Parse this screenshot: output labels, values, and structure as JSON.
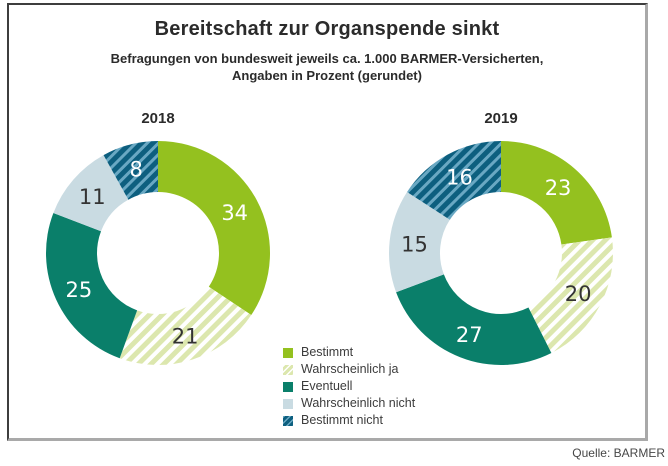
{
  "chart_data": {
    "type": "pie",
    "subtype": "donut-pair",
    "title": "Bereitschaft zur Organspende sinkt",
    "subtitle": "Befragungen von bundesweit jeweils ca. 1.000 BARMER-Versicherten, Angaben in Prozent (gerundet)",
    "subtitle_line1": "Befragungen von bundesweit jeweils ca. 1.000 BARMER-Versicherten,",
    "subtitle_line2": "Angaben in Prozent (gerundet)",
    "unit": "Prozent",
    "categories": [
      "Bestimmt",
      "Wahrscheinlich ja",
      "Eventuell",
      "Wahrscheinlich nicht",
      "Bestimmt nicht"
    ],
    "series": [
      {
        "name": "2018",
        "values": [
          34,
          21,
          25,
          11,
          8
        ]
      },
      {
        "name": "2019",
        "values": [
          23,
          20,
          27,
          15,
          16
        ]
      }
    ],
    "segment_styles": [
      {
        "fill": "#94c11f",
        "hatch": false,
        "label_color": "#ffffff"
      },
      {
        "fill": "#dce7ae",
        "hatch": true,
        "hatch_color": "#ffffff",
        "hatch_period": 9,
        "hatch_width": 4,
        "label_color": "#333333"
      },
      {
        "fill": "#0a7f6a",
        "hatch": false,
        "label_color": "#ffffff"
      },
      {
        "fill": "#c9dbe2",
        "hatch": false,
        "label_color": "#333333"
      },
      {
        "fill": "#0d5f7f",
        "hatch": true,
        "hatch_color": "#69a8c3",
        "hatch_period": 8,
        "hatch_width": 3,
        "label_color": "#ffffff"
      }
    ],
    "donut_hole_ratio": 0.545,
    "legend_position": "bottom-center",
    "source": "Quelle: BARMER"
  }
}
